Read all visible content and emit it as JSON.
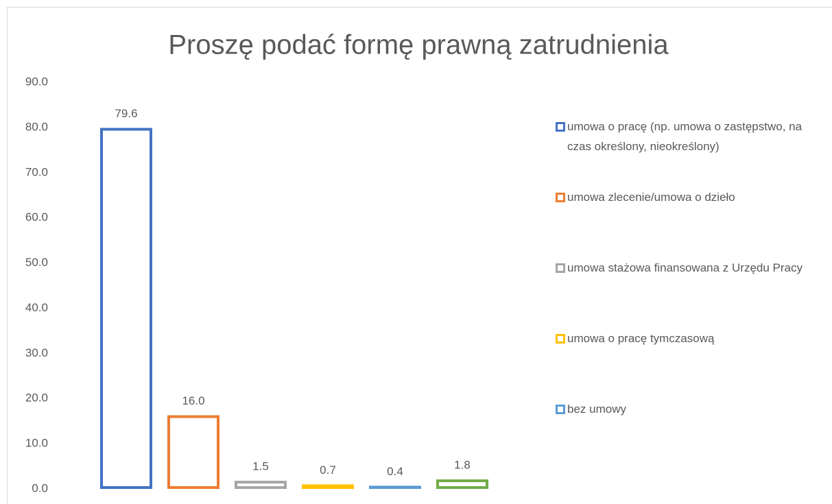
{
  "chart_data": {
    "type": "bar",
    "title": "Proszę podać formę prawną zatrudnienia",
    "categories": [
      "umowa o pracę (np. umowa o zastępstwo, na czas określony, nieokreślony)",
      "umowa zlecenie/umowa o dzieło",
      "umowa stażowa finansowana z Urzędu Pracy",
      "umowa o pracę tymczasową",
      "bez umowy",
      null
    ],
    "values": [
      79.6,
      16.0,
      1.5,
      0.7,
      0.4,
      1.8
    ],
    "value_labels": [
      "79.6",
      "16.0",
      "1.5",
      "0.7",
      "0.4",
      "1.8"
    ],
    "colors": [
      "#4472c4",
      "#ed7d31",
      "#a5a5a5",
      "#ffc000",
      "#5b9bd5",
      "#70ad47"
    ],
    "ylim": [
      0,
      90
    ],
    "yticks": [
      {
        "value": 0,
        "label": "0.0"
      },
      {
        "value": 10,
        "label": "10.0"
      },
      {
        "value": 20,
        "label": "20.0"
      },
      {
        "value": 30,
        "label": "30.0"
      },
      {
        "value": 40,
        "label": "40.0"
      },
      {
        "value": 50,
        "label": "50.0"
      },
      {
        "value": 60,
        "label": "60.0"
      },
      {
        "value": 70,
        "label": "70.0"
      },
      {
        "value": 80,
        "label": "80.0"
      },
      {
        "value": 90,
        "label": "90.0"
      }
    ],
    "grid": false,
    "legend": "right"
  }
}
